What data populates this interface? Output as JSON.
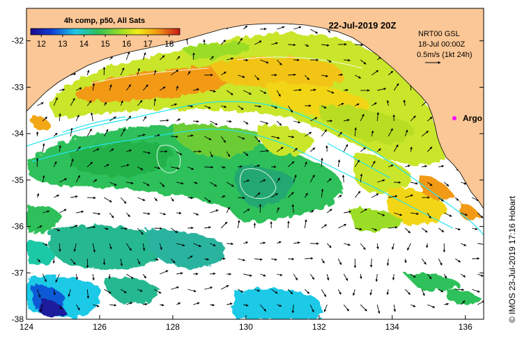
{
  "map": {
    "date_title": "22-Jul-2019 20Z",
    "colorbar": {
      "title": "4h comp, p50, All Sats",
      "ticks": [
        "12",
        "13",
        "14",
        "15",
        "16",
        "17",
        "18"
      ],
      "min": 11.5,
      "max": 18.5
    },
    "legend_box": {
      "line1": "NRT00 GSL",
      "line2": "18-Jul 00:00Z",
      "line3": "0.5m/s (1kt 24h)"
    },
    "argo_label": "Argo",
    "credit": "© IMOS 23-Jul-2019 17:16 Hobart",
    "x_axis": {
      "ticks": [
        "124",
        "126",
        "128",
        "130",
        "132",
        "134",
        "136"
      ],
      "min": 124,
      "max": 136.5
    },
    "y_axis": {
      "ticks": [
        "-32",
        "-33",
        "-34",
        "-35",
        "-36",
        "-37",
        "-38"
      ],
      "min": -38,
      "max": -31.3
    },
    "colors": {
      "land": "#fbc796",
      "ocean_nodata": "#ffffff",
      "argo": "#ff00ff",
      "contour": "#22e4f0"
    }
  }
}
